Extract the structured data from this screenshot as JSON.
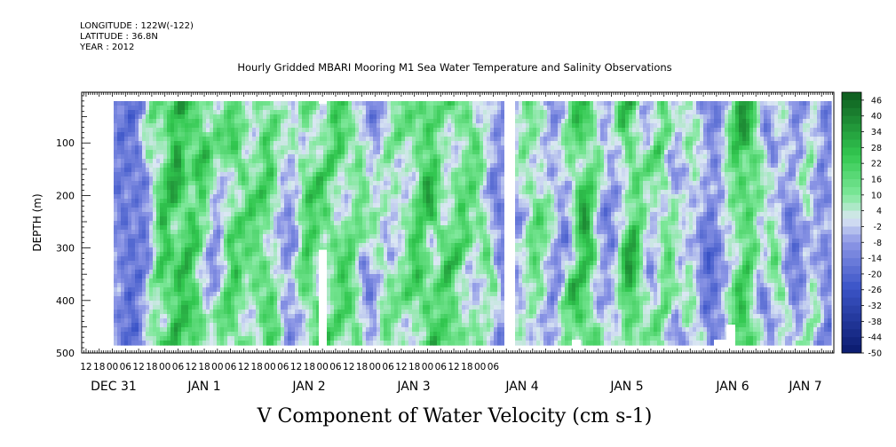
{
  "header": {
    "longitude": "LONGITUDE : 122W(-122)",
    "latitude": "LATITUDE : 36.8N",
    "year": "YEAR : 2012"
  },
  "chart_data": {
    "type": "heatmap",
    "title": "Hourly Gridded MBARI Mooring M1 Sea Water Temperature and Salinity Observations",
    "xlabel": "V Component of Water Velocity (cm s-1)",
    "ylabel": "DEPTH (m)",
    "ylim": [
      500,
      0
    ],
    "y_ticks": [
      100,
      200,
      300,
      400,
      500
    ],
    "x_hour_ticks": [
      "12",
      "18",
      "00",
      "06",
      "12",
      "18",
      "00",
      "06",
      "12",
      "18",
      "00",
      "06",
      "12",
      "18",
      "00",
      "06",
      "12",
      "18",
      "00",
      "06",
      "12",
      "18",
      "00",
      "06",
      "12",
      "18",
      "00",
      "06",
      "12",
      "18",
      "00",
      "06"
    ],
    "x_date_labels": [
      "DEC 31",
      "JAN  1",
      "JAN  2",
      "JAN  3",
      "JAN  4",
      "JAN  5",
      "JAN  6",
      "JAN  7"
    ],
    "colorbar": {
      "labels": [
        "46",
        "40",
        "34",
        "28",
        "22",
        "16",
        "10",
        "4",
        "-2",
        "-8",
        "-14",
        "-20",
        "-26",
        "-32",
        "-38",
        "-44",
        "-50"
      ],
      "range": [
        -50,
        49
      ]
    },
    "data_extent": {
      "time_start": "DEC 31 06",
      "time_end": "JAN 7 06",
      "depth_top": 20,
      "depth_bottom": 485
    },
    "missing_time_strip": "JAN 4 06",
    "missing_notch": {
      "time": "JAN 2 14",
      "depth_from": 300,
      "depth_to": 485
    },
    "palette": {
      "low": "#0a1a6e",
      "mid_low": "#8d97e6",
      "mid": "#dbe7f3",
      "mid_high": "#7ee89a",
      "high": "#0d5a1e"
    }
  }
}
